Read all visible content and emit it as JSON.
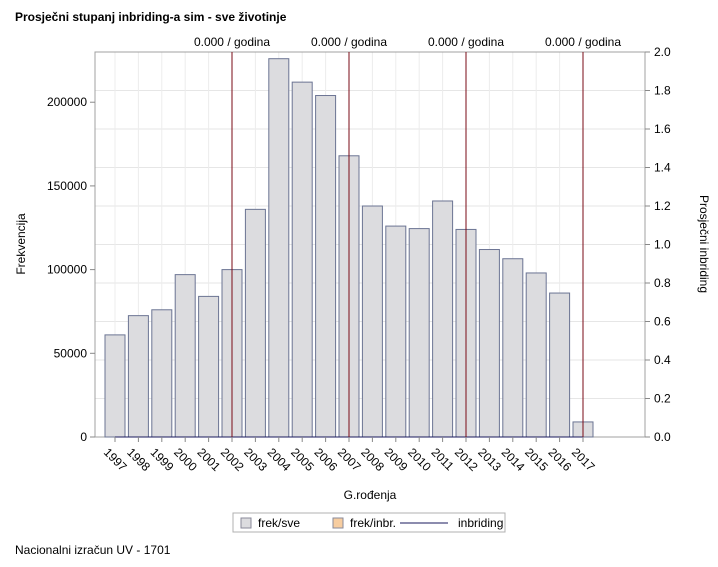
{
  "title": "Prosječni stupanj inbriding-a sim - sve životinje",
  "footnote": "Nacionalni izračun UV - 1701",
  "chart_data": {
    "type": "bar",
    "xlabel": "G.rođenja",
    "ylabel": "Frekvencija",
    "y2label": "Prosječni inbriding",
    "categories": [
      "1997",
      "1998",
      "1999",
      "2000",
      "2001",
      "2002",
      "2003",
      "2004",
      "2005",
      "2006",
      "2007",
      "2008",
      "2009",
      "2010",
      "2011",
      "2012",
      "2013",
      "2014",
      "2015",
      "2016",
      "2017"
    ],
    "series": [
      {
        "name": "frek/sve",
        "values": [
          61000,
          72500,
          76000,
          97000,
          84000,
          100000,
          136000,
          226000,
          212000,
          204000,
          168000,
          138000,
          126000,
          124500,
          141000,
          124000,
          112000,
          106500,
          98000,
          86000,
          9000
        ]
      }
    ],
    "inbreeding": [
      0,
      0,
      0,
      0,
      0,
      0,
      0,
      0,
      0,
      0,
      0,
      0,
      0,
      0,
      0,
      0,
      0,
      0,
      0,
      0,
      0
    ],
    "ylim": [
      0,
      230000
    ],
    "yticks": [
      0,
      50000,
      100000,
      150000,
      200000
    ],
    "ytick_labels": [
      "0",
      "50000",
      "100000",
      "150000",
      "200000"
    ],
    "y2lim": [
      0,
      2.0
    ],
    "y2ticks": [
      0,
      0.2,
      0.4,
      0.6,
      0.8,
      1.0,
      1.2,
      1.4,
      1.6,
      1.8,
      2.0
    ],
    "y2tick_labels": [
      "0.0",
      "0.2",
      "0.4",
      "0.6",
      "0.8",
      "1.0",
      "1.2",
      "1.4",
      "1.6",
      "1.8",
      "2.0"
    ],
    "reference_lines": [
      {
        "year": "2002",
        "label": "0.000 / godina"
      },
      {
        "year": "2007",
        "label": "0.000 / godina"
      },
      {
        "year": "2012",
        "label": "0.000 / godina"
      },
      {
        "year": "2017",
        "label": "0.000 / godina"
      }
    ],
    "legend": [
      {
        "label": "frek/sve",
        "kind": "bar",
        "color": "#dcdcdf"
      },
      {
        "label": "frek/inbr.",
        "kind": "bar",
        "color": "#f7cda0"
      },
      {
        "label": "inbriding",
        "kind": "line",
        "color": "#1a1a5e"
      }
    ],
    "legend_position": "bottom",
    "grid": true,
    "colors": {
      "bar_fill": "#dcdcdf",
      "bar_stroke": "#6b7493",
      "ref_line": "#7a0a14",
      "inbr_line": "#1a1a5e"
    }
  }
}
